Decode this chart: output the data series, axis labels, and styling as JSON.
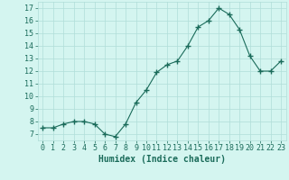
{
  "x": [
    0,
    1,
    2,
    3,
    4,
    5,
    6,
    7,
    8,
    9,
    10,
    11,
    12,
    13,
    14,
    15,
    16,
    17,
    18,
    19,
    20,
    21,
    22,
    23
  ],
  "y": [
    7.5,
    7.5,
    7.8,
    8.0,
    8.0,
    7.8,
    7.0,
    6.8,
    7.8,
    9.5,
    10.5,
    11.9,
    12.5,
    12.8,
    14.0,
    15.5,
    16.0,
    17.0,
    16.5,
    15.3,
    13.2,
    12.0,
    12.0,
    12.8
  ],
  "line_color": "#1a6b5a",
  "marker": "+",
  "marker_size": 4.0,
  "bg_color": "#d4f5f0",
  "grid_color": "#b0ddd8",
  "xlabel": "Humidex (Indice chaleur)",
  "xlim": [
    -0.5,
    23.5
  ],
  "ylim": [
    6.5,
    17.5
  ],
  "yticks": [
    7,
    8,
    9,
    10,
    11,
    12,
    13,
    14,
    15,
    16,
    17
  ],
  "xticks": [
    0,
    1,
    2,
    3,
    4,
    5,
    6,
    7,
    8,
    9,
    10,
    11,
    12,
    13,
    14,
    15,
    16,
    17,
    18,
    19,
    20,
    21,
    22,
    23
  ],
  "tick_color": "#1a6b5a",
  "label_color": "#1a6b5a",
  "xlabel_fontsize": 7,
  "tick_fontsize": 6
}
